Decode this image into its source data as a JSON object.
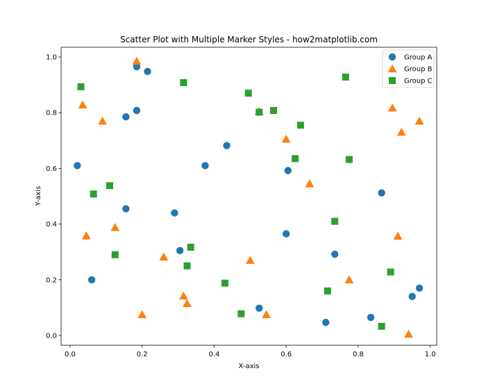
{
  "chart_data": {
    "type": "scatter",
    "title": "Scatter Plot with Multiple Marker Styles - how2matplotlib.com",
    "xlabel": "X-axis",
    "ylabel": "Y-axis",
    "xlim": [
      -0.025,
      1.018
    ],
    "ylim": [
      -0.035,
      1.035
    ],
    "xticks": [
      "0.0",
      "0.2",
      "0.4",
      "0.6",
      "0.8",
      "1.0"
    ],
    "yticks": [
      "0.0",
      "0.2",
      "0.4",
      "0.6",
      "0.8",
      "1.0"
    ],
    "grid": false,
    "legend_position": "top-right",
    "series": [
      {
        "name": "Group A",
        "marker": "circle",
        "color": "#1f77b4",
        "points": [
          [
            0.02,
            0.61
          ],
          [
            0.06,
            0.2
          ],
          [
            0.155,
            0.785
          ],
          [
            0.155,
            0.455
          ],
          [
            0.185,
            0.965
          ],
          [
            0.185,
            0.808
          ],
          [
            0.215,
            0.948
          ],
          [
            0.29,
            0.44
          ],
          [
            0.305,
            0.305
          ],
          [
            0.375,
            0.61
          ],
          [
            0.435,
            0.682
          ],
          [
            0.525,
            0.098
          ],
          [
            0.6,
            0.365
          ],
          [
            0.605,
            0.592
          ],
          [
            0.71,
            0.047
          ],
          [
            0.735,
            0.292
          ],
          [
            0.835,
            0.065
          ],
          [
            0.865,
            0.512
          ],
          [
            0.95,
            0.14
          ],
          [
            0.97,
            0.17
          ]
        ]
      },
      {
        "name": "Group B",
        "marker": "triangle",
        "color": "#ff7f0e",
        "points": [
          [
            0.035,
            0.828
          ],
          [
            0.045,
            0.358
          ],
          [
            0.09,
            0.77
          ],
          [
            0.125,
            0.388
          ],
          [
            0.185,
            0.985
          ],
          [
            0.2,
            0.075
          ],
          [
            0.26,
            0.282
          ],
          [
            0.315,
            0.142
          ],
          [
            0.325,
            0.115
          ],
          [
            0.5,
            0.27
          ],
          [
            0.525,
            0.805
          ],
          [
            0.545,
            0.075
          ],
          [
            0.6,
            0.705
          ],
          [
            0.665,
            0.545
          ],
          [
            0.775,
            0.2
          ],
          [
            0.895,
            0.817
          ],
          [
            0.91,
            0.357
          ],
          [
            0.92,
            0.73
          ],
          [
            0.94,
            0.005
          ],
          [
            0.97,
            0.77
          ]
        ]
      },
      {
        "name": "Group C",
        "marker": "square",
        "color": "#2ca02c",
        "points": [
          [
            0.03,
            0.893
          ],
          [
            0.065,
            0.508
          ],
          [
            0.11,
            0.538
          ],
          [
            0.125,
            0.29
          ],
          [
            0.315,
            0.908
          ],
          [
            0.325,
            0.25
          ],
          [
            0.335,
            0.317
          ],
          [
            0.43,
            0.188
          ],
          [
            0.475,
            0.078
          ],
          [
            0.495,
            0.87
          ],
          [
            0.525,
            0.802
          ],
          [
            0.565,
            0.808
          ],
          [
            0.625,
            0.635
          ],
          [
            0.64,
            0.755
          ],
          [
            0.715,
            0.16
          ],
          [
            0.735,
            0.41
          ],
          [
            0.765,
            0.928
          ],
          [
            0.775,
            0.632
          ],
          [
            0.865,
            0.033
          ],
          [
            0.89,
            0.228
          ]
        ]
      }
    ]
  }
}
